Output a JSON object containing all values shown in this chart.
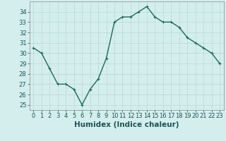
{
  "x": [
    0,
    1,
    2,
    3,
    4,
    5,
    6,
    7,
    8,
    9,
    10,
    11,
    12,
    13,
    14,
    15,
    16,
    17,
    18,
    19,
    20,
    21,
    22,
    23
  ],
  "y": [
    30.5,
    30.0,
    28.5,
    27.0,
    27.0,
    26.5,
    25.0,
    26.5,
    27.5,
    29.5,
    33.0,
    33.5,
    33.5,
    34.0,
    34.5,
    33.5,
    33.0,
    33.0,
    32.5,
    31.5,
    31.0,
    30.5,
    30.0,
    29.0
  ],
  "line_color": "#1a6b5a",
  "marker": "+",
  "bg_color": "#d4eeee",
  "grid_color": "#b8d8d8",
  "xlabel": "Humidex (Indice chaleur)",
  "ylim": [
    24.5,
    35.0
  ],
  "xlim": [
    -0.5,
    23.5
  ],
  "yticks": [
    25,
    26,
    27,
    28,
    29,
    30,
    31,
    32,
    33,
    34
  ],
  "xticks": [
    0,
    1,
    2,
    3,
    4,
    5,
    6,
    7,
    8,
    9,
    10,
    11,
    12,
    13,
    14,
    15,
    16,
    17,
    18,
    19,
    20,
    21,
    22,
    23
  ],
  "tick_fontsize": 6.0,
  "xlabel_fontsize": 7.5,
  "linewidth": 1.0,
  "markersize": 3.5,
  "markeredgewidth": 0.8
}
